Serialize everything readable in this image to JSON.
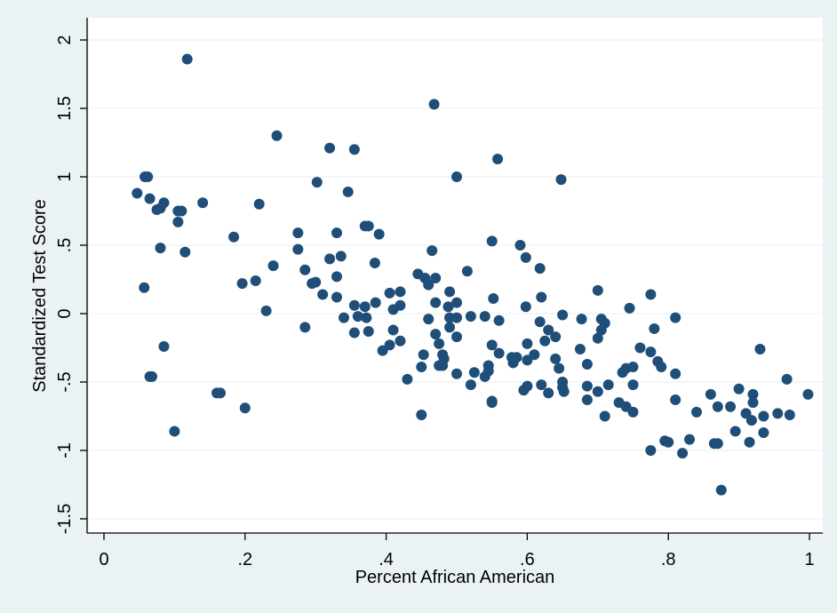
{
  "chart_data": {
    "type": "scatter",
    "xlabel": "Percent African American",
    "ylabel": "Standardized Test Score",
    "xlim": [
      0,
      1
    ],
    "ylim": [
      -1.5,
      2
    ],
    "x_ticks": [
      0,
      0.2,
      0.4,
      0.6,
      0.8,
      1
    ],
    "x_tick_labels": [
      "0",
      ".2",
      ".4",
      ".6",
      ".8",
      "1"
    ],
    "y_ticks": [
      -1.5,
      -1,
      -0.5,
      0,
      0.5,
      1,
      1.5,
      2
    ],
    "y_tick_labels": [
      "-1.5",
      "-1",
      "-.5",
      "0",
      ".5",
      "1",
      "1.5",
      "2"
    ],
    "grid": "horizontal",
    "colors": {
      "background": "#eaf2f3",
      "plot_area": "#ffffff",
      "marker": "#1f4e79",
      "grid": "#eaf2f3"
    },
    "points": [
      [
        0.118,
        1.86
      ],
      [
        0.468,
        1.53
      ],
      [
        0.245,
        1.3
      ],
      [
        0.32,
        1.21
      ],
      [
        0.355,
        1.2
      ],
      [
        0.558,
        1.13
      ],
      [
        0.5,
        1.0
      ],
      [
        0.648,
        0.98
      ],
      [
        0.058,
        1.0
      ],
      [
        0.062,
        1.0
      ],
      [
        0.302,
        0.96
      ],
      [
        0.047,
        0.88
      ],
      [
        0.065,
        0.84
      ],
      [
        0.346,
        0.89
      ],
      [
        0.085,
        0.81
      ],
      [
        0.14,
        0.81
      ],
      [
        0.22,
        0.8
      ],
      [
        0.075,
        0.76
      ],
      [
        0.08,
        0.77
      ],
      [
        0.105,
        0.75
      ],
      [
        0.11,
        0.75
      ],
      [
        0.105,
        0.67
      ],
      [
        0.08,
        0.48
      ],
      [
        0.115,
        0.45
      ],
      [
        0.37,
        0.64
      ],
      [
        0.375,
        0.64
      ],
      [
        0.275,
        0.59
      ],
      [
        0.33,
        0.59
      ],
      [
        0.39,
        0.58
      ],
      [
        0.184,
        0.56
      ],
      [
        0.55,
        0.53
      ],
      [
        0.59,
        0.5
      ],
      [
        0.275,
        0.47
      ],
      [
        0.465,
        0.46
      ],
      [
        0.598,
        0.41
      ],
      [
        0.336,
        0.42
      ],
      [
        0.32,
        0.4
      ],
      [
        0.384,
        0.37
      ],
      [
        0.24,
        0.35
      ],
      [
        0.285,
        0.32
      ],
      [
        0.515,
        0.31
      ],
      [
        0.618,
        0.33
      ],
      [
        0.445,
        0.29
      ],
      [
        0.455,
        0.26
      ],
      [
        0.47,
        0.26
      ],
      [
        0.33,
        0.27
      ],
      [
        0.3,
        0.23
      ],
      [
        0.295,
        0.22
      ],
      [
        0.196,
        0.22
      ],
      [
        0.215,
        0.24
      ],
      [
        0.31,
        0.14
      ],
      [
        0.405,
        0.15
      ],
      [
        0.42,
        0.16
      ],
      [
        0.46,
        0.21
      ],
      [
        0.49,
        0.16
      ],
      [
        0.552,
        0.11
      ],
      [
        0.598,
        0.05
      ],
      [
        0.62,
        0.12
      ],
      [
        0.7,
        0.17
      ],
      [
        0.775,
        0.14
      ],
      [
        0.745,
        0.04
      ],
      [
        0.057,
        0.19
      ],
      [
        0.23,
        0.02
      ],
      [
        0.33,
        0.12
      ],
      [
        0.355,
        0.06
      ],
      [
        0.37,
        0.05
      ],
      [
        0.385,
        0.08
      ],
      [
        0.42,
        0.06
      ],
      [
        0.488,
        0.05
      ],
      [
        0.5,
        0.08
      ],
      [
        0.41,
        0.03
      ],
      [
        0.34,
        -0.03
      ],
      [
        0.36,
        -0.02
      ],
      [
        0.372,
        -0.03
      ],
      [
        0.47,
        0.08
      ],
      [
        0.49,
        -0.03
      ],
      [
        0.5,
        -0.03
      ],
      [
        0.46,
        -0.04
      ],
      [
        0.52,
        -0.02
      ],
      [
        0.54,
        -0.02
      ],
      [
        0.56,
        -0.05
      ],
      [
        0.618,
        -0.06
      ],
      [
        0.65,
        -0.01
      ],
      [
        0.677,
        -0.04
      ],
      [
        0.705,
        -0.04
      ],
      [
        0.71,
        -0.07
      ],
      [
        0.81,
        -0.03
      ],
      [
        0.78,
        -0.11
      ],
      [
        0.285,
        -0.1
      ],
      [
        0.375,
        -0.13
      ],
      [
        0.355,
        -0.14
      ],
      [
        0.41,
        -0.12
      ],
      [
        0.42,
        -0.2
      ],
      [
        0.47,
        -0.15
      ],
      [
        0.49,
        -0.1
      ],
      [
        0.5,
        -0.17
      ],
      [
        0.6,
        -0.22
      ],
      [
        0.63,
        -0.12
      ],
      [
        0.64,
        -0.17
      ],
      [
        0.705,
        -0.12
      ],
      [
        0.7,
        -0.18
      ],
      [
        0.625,
        -0.2
      ],
      [
        0.55,
        -0.23
      ],
      [
        0.475,
        -0.22
      ],
      [
        0.395,
        -0.27
      ],
      [
        0.405,
        -0.23
      ],
      [
        0.48,
        -0.3
      ],
      [
        0.482,
        -0.33
      ],
      [
        0.453,
        -0.3
      ],
      [
        0.56,
        -0.29
      ],
      [
        0.578,
        -0.32
      ],
      [
        0.585,
        -0.32
      ],
      [
        0.61,
        -0.3
      ],
      [
        0.6,
        -0.34
      ],
      [
        0.64,
        -0.33
      ],
      [
        0.675,
        -0.26
      ],
      [
        0.685,
        -0.37
      ],
      [
        0.76,
        -0.25
      ],
      [
        0.775,
        -0.28
      ],
      [
        0.785,
        -0.35
      ],
      [
        0.58,
        -0.36
      ],
      [
        0.525,
        -0.43
      ],
      [
        0.545,
        -0.38
      ],
      [
        0.545,
        -0.42
      ],
      [
        0.5,
        -0.44
      ],
      [
        0.475,
        -0.38
      ],
      [
        0.48,
        -0.38
      ],
      [
        0.43,
        -0.48
      ],
      [
        0.45,
        -0.39
      ],
      [
        0.52,
        -0.52
      ],
      [
        0.54,
        -0.46
      ],
      [
        0.595,
        -0.56
      ],
      [
        0.6,
        -0.53
      ],
      [
        0.62,
        -0.52
      ],
      [
        0.63,
        -0.58
      ],
      [
        0.645,
        -0.4
      ],
      [
        0.65,
        -0.5
      ],
      [
        0.65,
        -0.54
      ],
      [
        0.652,
        -0.57
      ],
      [
        0.685,
        -0.53
      ],
      [
        0.685,
        -0.63
      ],
      [
        0.7,
        -0.57
      ],
      [
        0.715,
        -0.52
      ],
      [
        0.735,
        -0.43
      ],
      [
        0.74,
        -0.4
      ],
      [
        0.75,
        -0.39
      ],
      [
        0.75,
        -0.52
      ],
      [
        0.79,
        -0.39
      ],
      [
        0.81,
        -0.44
      ],
      [
        0.81,
        -0.63
      ],
      [
        0.84,
        -0.72
      ],
      [
        0.86,
        -0.59
      ],
      [
        0.9,
        -0.55
      ],
      [
        0.92,
        -0.59
      ],
      [
        0.92,
        -0.65
      ],
      [
        0.93,
        -0.26
      ],
      [
        0.968,
        -0.48
      ],
      [
        0.998,
        -0.59
      ],
      [
        0.888,
        -0.68
      ],
      [
        0.87,
        -0.68
      ],
      [
        0.91,
        -0.73
      ],
      [
        0.918,
        -0.78
      ],
      [
        0.955,
        -0.73
      ],
      [
        0.972,
        -0.74
      ],
      [
        0.935,
        -0.75
      ],
      [
        0.935,
        -0.87
      ],
      [
        0.895,
        -0.86
      ],
      [
        0.865,
        -0.95
      ],
      [
        0.87,
        -0.95
      ],
      [
        0.915,
        -0.94
      ],
      [
        0.775,
        -1.0
      ],
      [
        0.795,
        -0.93
      ],
      [
        0.8,
        -0.94
      ],
      [
        0.82,
        -1.02
      ],
      [
        0.83,
        -0.92
      ],
      [
        0.875,
        -1.29
      ],
      [
        0.73,
        -0.65
      ],
      [
        0.74,
        -0.68
      ],
      [
        0.75,
        -0.72
      ],
      [
        0.71,
        -0.75
      ],
      [
        0.55,
        -0.64
      ],
      [
        0.55,
        -0.65
      ],
      [
        0.45,
        -0.74
      ],
      [
        0.16,
        -0.58
      ],
      [
        0.165,
        -0.58
      ],
      [
        0.065,
        -0.46
      ],
      [
        0.068,
        -0.46
      ],
      [
        0.085,
        -0.24
      ],
      [
        0.2,
        -0.69
      ],
      [
        0.1,
        -0.86
      ]
    ]
  }
}
